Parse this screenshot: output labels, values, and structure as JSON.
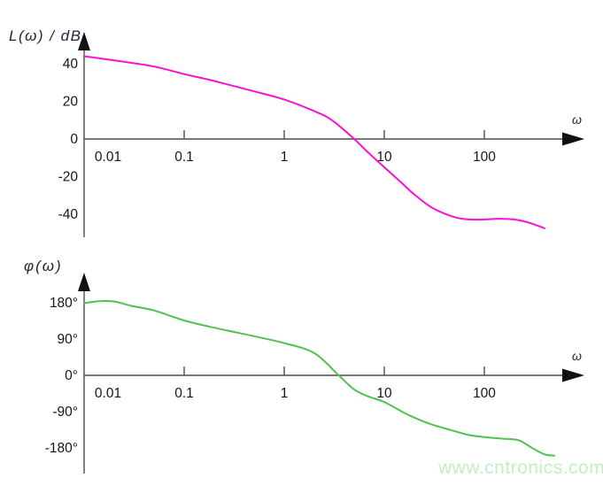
{
  "figure": {
    "background": "#ffffff"
  },
  "watermark": {
    "text": "www.cntronics.com",
    "color": "#c7edc5"
  },
  "colors": {
    "axis": "#4d4d4d",
    "arrowhead": "#111111",
    "tick_label": "#161616",
    "axis_title": "#23233a",
    "magnitude_curve": "#f811cf",
    "phase_curve": "#50c150"
  },
  "chart_data": [
    {
      "type": "line",
      "id": "magnitude",
      "title": "L(ω) / dB",
      "xlabel": "ω",
      "ylabel": "L(ω)/dB",
      "x_scale": "log",
      "xlim": [
        0.01,
        500
      ],
      "ylim": [
        -50,
        50
      ],
      "grid": false,
      "legend": "none",
      "x_ticks": [
        "0.01",
        "0.1",
        "1",
        "10",
        "100"
      ],
      "x_tick_values": [
        0.01,
        0.1,
        1,
        10,
        100
      ],
      "y_ticks": [
        "40",
        "20",
        "0",
        "-20",
        "-40"
      ],
      "y_tick_values": [
        40,
        20,
        0,
        -20,
        -40
      ],
      "series": [
        {
          "name": "L(ω)",
          "color": "#f811cf",
          "points": [
            [
              0.01,
              44
            ],
            [
              0.02,
              41.8
            ],
            [
              0.05,
              38.5
            ],
            [
              0.1,
              34.5
            ],
            [
              0.2,
              30.8
            ],
            [
              0.5,
              25.3
            ],
            [
              1,
              21
            ],
            [
              2,
              14.8
            ],
            [
              3,
              10
            ],
            [
              5,
              0
            ],
            [
              7,
              -7.5
            ],
            [
              10,
              -15
            ],
            [
              15,
              -23.5
            ],
            [
              20,
              -29.5
            ],
            [
              30,
              -36.5
            ],
            [
              50,
              -41.5
            ],
            [
              70,
              -42.8
            ],
            [
              100,
              -42.8
            ],
            [
              140,
              -42.4
            ],
            [
              200,
              -42.8
            ],
            [
              280,
              -44.5
            ],
            [
              400,
              -47.5
            ]
          ]
        }
      ]
    },
    {
      "type": "line",
      "id": "phase",
      "title": "φ(ω)",
      "xlabel": "ω",
      "ylabel": "φ(ω)",
      "x_scale": "log",
      "xlim": [
        0.01,
        600
      ],
      "ylim": [
        -200,
        190
      ],
      "grid": false,
      "legend": "none",
      "x_ticks": [
        "0.01",
        "0.1",
        "1",
        "10",
        "100"
      ],
      "x_tick_values": [
        0.01,
        0.1,
        1,
        10,
        100
      ],
      "y_ticks": [
        "180°",
        "90°",
        "0°",
        "-90°",
        "-180°"
      ],
      "y_tick_values": [
        180,
        90,
        0,
        -90,
        -180
      ],
      "series": [
        {
          "name": "φ(ω)",
          "color": "#50c150",
          "points": [
            [
              0.01,
              179
            ],
            [
              0.014,
              184
            ],
            [
              0.02,
              183
            ],
            [
              0.03,
              172
            ],
            [
              0.05,
              161
            ],
            [
              0.1,
              136
            ],
            [
              0.2,
              118
            ],
            [
              0.5,
              97
            ],
            [
              1,
              80
            ],
            [
              2,
              55
            ],
            [
              3.5,
              0
            ],
            [
              5,
              -35
            ],
            [
              7,
              -53
            ],
            [
              10,
              -66
            ],
            [
              15,
              -90
            ],
            [
              20,
              -105
            ],
            [
              30,
              -122
            ],
            [
              50,
              -138
            ],
            [
              70,
              -148
            ],
            [
              100,
              -153
            ],
            [
              150,
              -157
            ],
            [
              220,
              -161
            ],
            [
              300,
              -180
            ],
            [
              400,
              -196
            ],
            [
              500,
              -199
            ]
          ]
        }
      ]
    }
  ]
}
